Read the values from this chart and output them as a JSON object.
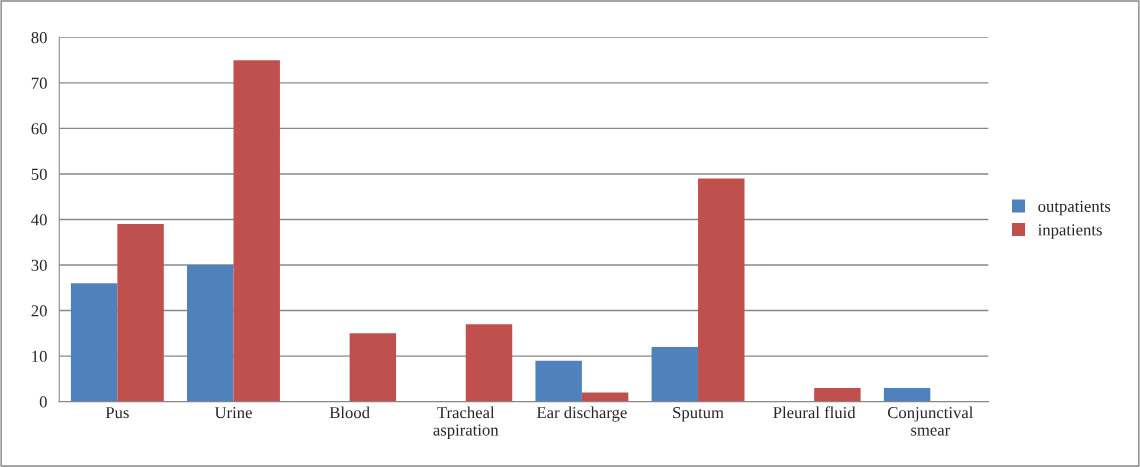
{
  "chart_data": {
    "type": "bar",
    "categories": [
      "Pus",
      "Urine",
      "Blood",
      "Tracheal\naspiration",
      "Ear discharge",
      "Sputum",
      "Pleural fluid",
      "Conjunctival\nsmear"
    ],
    "series": [
      {
        "name": "outpatients",
        "color": "#4f81bd",
        "values": [
          26,
          30,
          0,
          0,
          9,
          12,
          0,
          3
        ]
      },
      {
        "name": "inpatients",
        "color": "#c0504d",
        "values": [
          39,
          75,
          15,
          17,
          2,
          49,
          3,
          0
        ]
      }
    ],
    "ylim": [
      0,
      80
    ],
    "yticks": [
      0,
      10,
      20,
      30,
      40,
      50,
      60,
      70,
      80
    ],
    "grid": "y",
    "legend": "right"
  }
}
